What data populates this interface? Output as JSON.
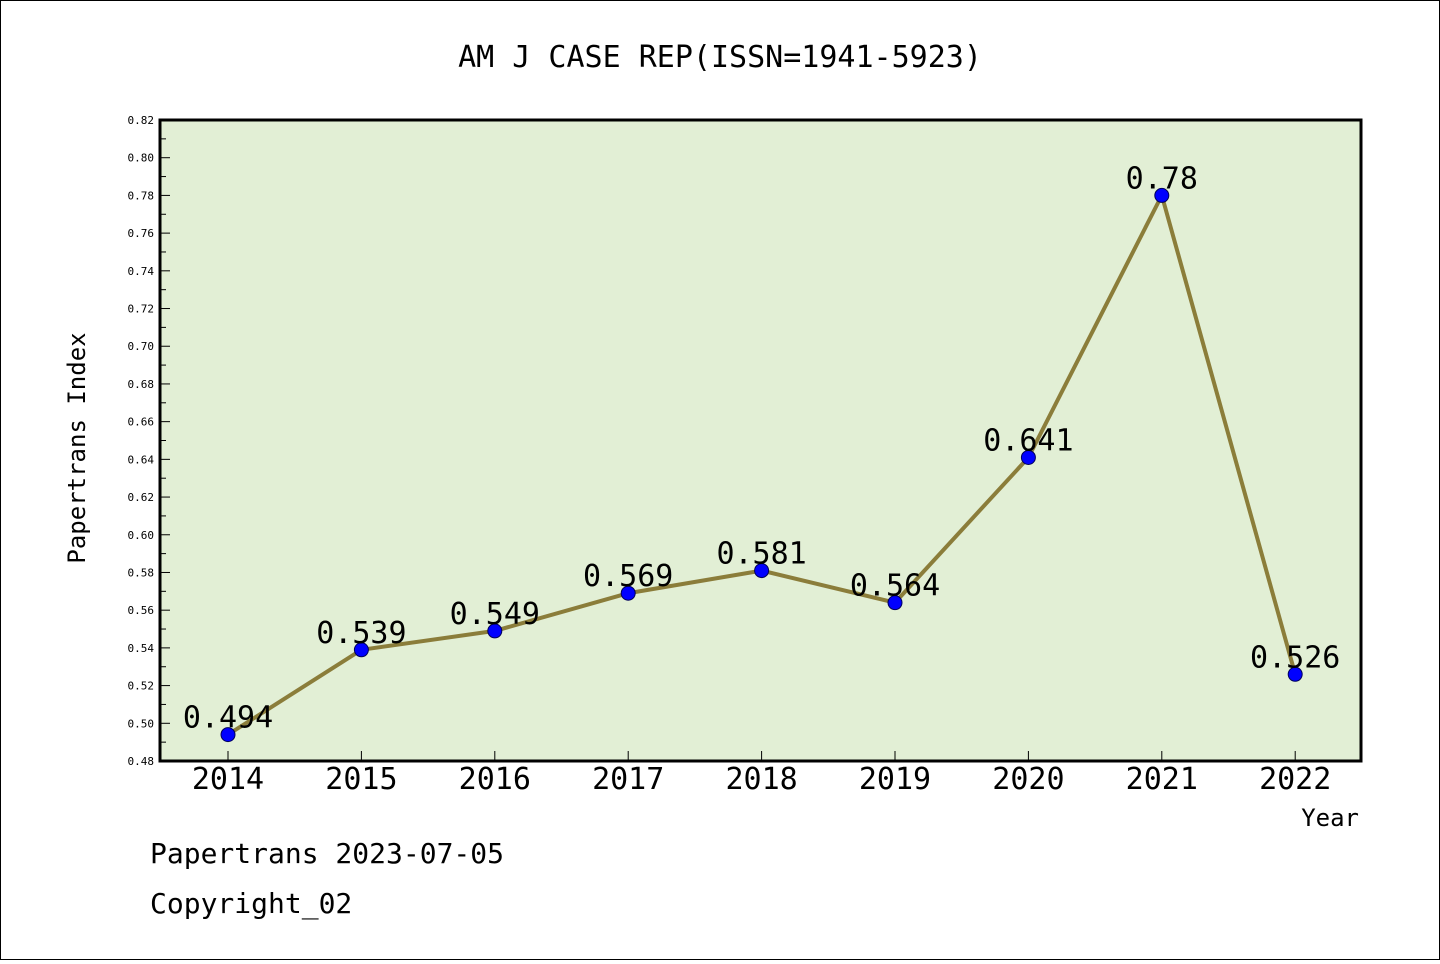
{
  "chart_data": {
    "type": "line",
    "title": "AM J CASE REP(ISSN=1941-5923)",
    "xlabel": "Year",
    "ylabel": "Papertrans Index",
    "categories": [
      "2014",
      "2015",
      "2016",
      "2017",
      "2018",
      "2019",
      "2020",
      "2021",
      "2022"
    ],
    "values": [
      0.494,
      0.539,
      0.549,
      0.569,
      0.581,
      0.564,
      0.641,
      0.78,
      0.526
    ],
    "data_labels": [
      "0.494",
      "0.539",
      "0.549",
      "0.569",
      "0.581",
      "0.564",
      "0.641",
      "0.78",
      "0.526"
    ],
    "ylim": [
      0.48,
      0.82
    ],
    "y_ticks": [
      "0.48",
      "0.50",
      "0.52",
      "0.54",
      "0.56",
      "0.58",
      "0.60",
      "0.62",
      "0.64",
      "0.66",
      "0.68",
      "0.70",
      "0.72",
      "0.74",
      "0.76",
      "0.78",
      "0.80",
      "0.82"
    ],
    "grid": false,
    "legend": "none",
    "colors": {
      "plot_background": "#e2efd5",
      "line": "#8b7d3a",
      "marker": "#0000ff"
    }
  },
  "footer": {
    "source": "Papertrans 2023-07-05",
    "copyright": "Copyright_02"
  }
}
